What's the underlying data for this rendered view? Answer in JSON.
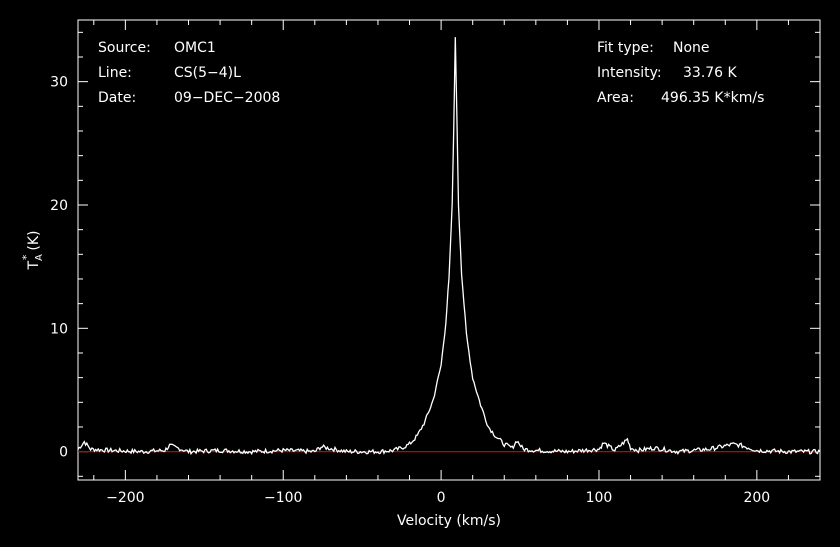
{
  "info_left": {
    "source_label": "Source:",
    "source_value": "OMC1",
    "line_label": "Line:",
    "line_value": "CS(5−4)L",
    "date_label": "Date:",
    "date_value": "09−DEC−2008"
  },
  "info_right": {
    "fit_label": "Fit type:",
    "fit_value": "None",
    "intensity_label": "Intensity:",
    "intensity_value": "33.76 K",
    "area_label": "Area:",
    "area_value": "496.35 K*km/s"
  },
  "chart_data": {
    "type": "line",
    "xlabel": "Velocity (km/s)",
    "ylabel_main": "T",
    "ylabel_sup": "*",
    "ylabel_sub": "A",
    "ylabel_unit": "(K)",
    "xlim": [
      -230,
      240
    ],
    "ylim": [
      -2.3,
      35
    ],
    "x_ticks": [
      -200,
      -100,
      0,
      100,
      200
    ],
    "x_tick_labels": [
      "−200",
      "−100",
      "0",
      "100",
      "200"
    ],
    "y_ticks": [
      0,
      10,
      20,
      30
    ],
    "y_tick_labels": [
      "0",
      "10",
      "20",
      "30"
    ],
    "baseline_y": 0,
    "series": [
      {
        "color": "#ffffff",
        "x": [
          -230,
          -226,
          -222,
          -210,
          -190,
          -175,
          -172,
          -160,
          -140,
          -120,
          -100,
          -80,
          -76,
          -60,
          -40,
          -30,
          -25,
          -20,
          -15,
          -10,
          -5,
          0,
          3,
          5,
          7,
          8,
          9,
          10,
          11,
          13,
          16,
          20,
          25,
          30,
          35,
          40,
          45,
          48,
          52,
          60,
          80,
          100,
          103,
          110,
          118,
          120,
          125,
          135,
          150,
          170,
          185,
          190,
          200,
          220,
          240
        ],
        "values": [
          0.2,
          0.8,
          0.2,
          0.1,
          0.0,
          0.1,
          0.5,
          0.0,
          0.1,
          0.0,
          0.1,
          0.0,
          0.4,
          0.0,
          0.0,
          0.1,
          0.3,
          0.6,
          1.3,
          2.5,
          4.2,
          7.0,
          10.5,
          14.0,
          20.0,
          26.0,
          33.76,
          27.0,
          20.0,
          14.5,
          9.5,
          6.0,
          3.8,
          2.0,
          1.2,
          0.6,
          0.3,
          0.9,
          0.2,
          0.1,
          0.0,
          0.2,
          0.7,
          0.1,
          1.0,
          0.3,
          0.1,
          0.3,
          0.0,
          0.2,
          0.6,
          0.5,
          0.1,
          0.0,
          0.0
        ]
      }
    ],
    "baseline_color": "#cc0000"
  }
}
